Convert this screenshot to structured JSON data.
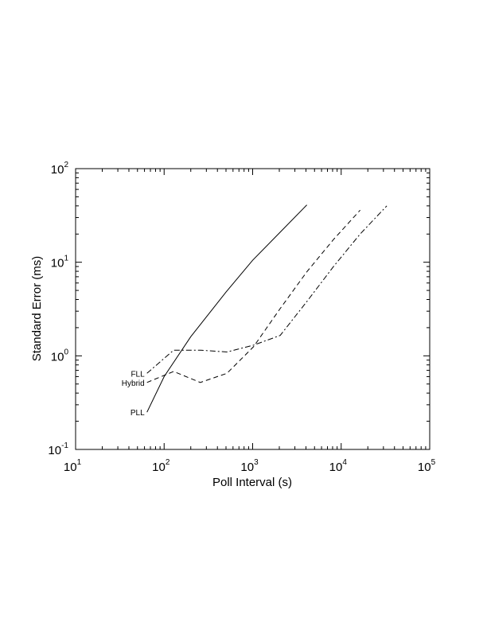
{
  "chart_data": {
    "type": "line",
    "xscale": "log",
    "yscale": "log",
    "xlim": [
      10,
      100000
    ],
    "ylim": [
      0.1,
      100
    ],
    "xlabel": "Poll Interval (s)",
    "ylabel": "Standard Error (ms)",
    "title": "",
    "grid": false,
    "x_ticks": [
      {
        "value": 10,
        "base": "10",
        "exp": "1"
      },
      {
        "value": 100,
        "base": "10",
        "exp": "2"
      },
      {
        "value": 1000,
        "base": "10",
        "exp": "3"
      },
      {
        "value": 10000,
        "base": "10",
        "exp": "4"
      },
      {
        "value": 100000,
        "base": "10",
        "exp": "5"
      }
    ],
    "y_ticks": [
      {
        "value": 0.1,
        "base": "10",
        "exp": "-1"
      },
      {
        "value": 1,
        "base": "10",
        "exp": "0"
      },
      {
        "value": 10,
        "base": "10",
        "exp": "1"
      },
      {
        "value": 100,
        "base": "10",
        "exp": "2"
      }
    ],
    "series": [
      {
        "name": "PLL",
        "style": "solid",
        "x": [
          64,
          100,
          200,
          500,
          1000,
          2000,
          4096
        ],
        "y": [
          0.25,
          0.6,
          1.6,
          4.8,
          10.5,
          20.5,
          41
        ]
      },
      {
        "name": "FLL",
        "style": "dashdot",
        "x": [
          64,
          128,
          256,
          512,
          1024,
          2048,
          4096,
          8192,
          16384,
          32768
        ],
        "y": [
          0.65,
          1.15,
          1.15,
          1.1,
          1.3,
          1.65,
          3.8,
          9,
          20,
          40
        ]
      },
      {
        "name": "Hybrid",
        "style": "dashed",
        "x": [
          64,
          128,
          256,
          512,
          1024,
          2048,
          4096,
          8192,
          16384
        ],
        "y": [
          0.52,
          0.68,
          0.52,
          0.65,
          1.25,
          3.2,
          7.9,
          17.5,
          36
        ]
      }
    ]
  }
}
